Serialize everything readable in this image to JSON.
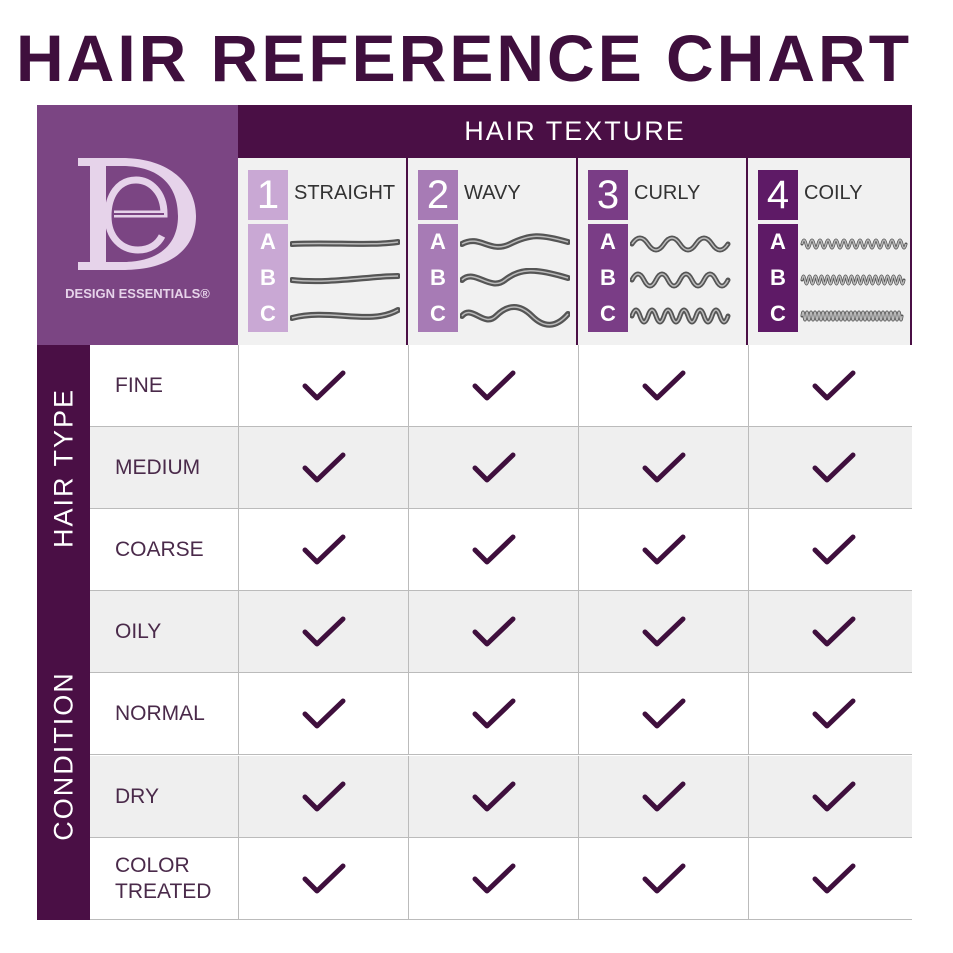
{
  "title": "HAIR REFERENCE CHART",
  "brand": {
    "name": "DESIGN ESSENTIALS®",
    "monogram": "DE"
  },
  "texture_header": "HAIR TEXTURE",
  "textures": [
    {
      "number": "1",
      "name": "STRAIGHT",
      "subtypes": [
        "A",
        "B",
        "C"
      ],
      "color": "#c9a8d4"
    },
    {
      "number": "2",
      "name": "WAVY",
      "subtypes": [
        "A",
        "B",
        "C"
      ],
      "color": "#a77bb5"
    },
    {
      "number": "3",
      "name": "CURLY",
      "subtypes": [
        "A",
        "B",
        "C"
      ],
      "color": "#7a3d86"
    },
    {
      "number": "4",
      "name": "COILY",
      "subtypes": [
        "A",
        "B",
        "C"
      ],
      "color": "#5e1a66"
    }
  ],
  "groups": [
    {
      "label": "HAIR TYPE"
    },
    {
      "label": "CONDITION"
    }
  ],
  "rows": [
    {
      "label": "FINE",
      "checks": [
        true,
        true,
        true,
        true
      ]
    },
    {
      "label": "MEDIUM",
      "checks": [
        true,
        true,
        true,
        true
      ]
    },
    {
      "label": "COARSE",
      "checks": [
        true,
        true,
        true,
        true
      ]
    },
    {
      "label": "OILY",
      "checks": [
        true,
        true,
        true,
        true
      ]
    },
    {
      "label": "NORMAL",
      "checks": [
        true,
        true,
        true,
        true
      ]
    },
    {
      "label": "DRY",
      "checks": [
        true,
        true,
        true,
        true
      ]
    },
    {
      "label": "COLOR\nTREATED",
      "checks": [
        true,
        true,
        true,
        true
      ]
    }
  ],
  "colors": {
    "dark": "#4a0f45",
    "logo_bg": "#7b4583",
    "check": "#3f0f3d",
    "row_alt": "#efefef"
  }
}
